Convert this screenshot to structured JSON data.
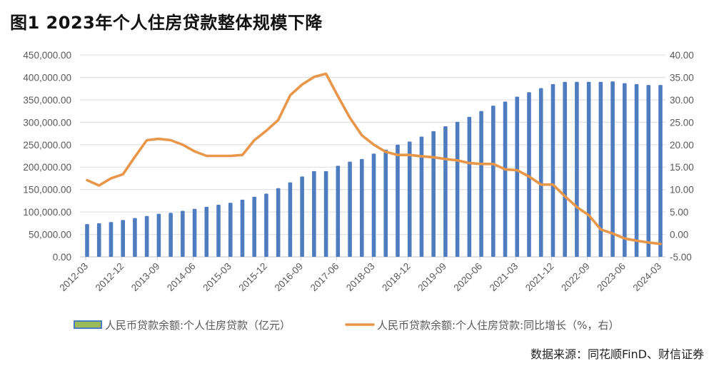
{
  "title": "图1  2023年个人住房贷款整体规模下降",
  "source": "数据来源：同花顺FinD、财信证券",
  "chart_data": {
    "type": "bar+line",
    "title": "图1  2023年个人住房贷款整体规模下降",
    "x": [
      "2012-03",
      "2012-06",
      "2012-09",
      "2012-12",
      "2013-03",
      "2013-06",
      "2013-09",
      "2013-12",
      "2014-03",
      "2014-06",
      "2014-09",
      "2014-12",
      "2015-03",
      "2015-06",
      "2015-09",
      "2015-12",
      "2016-03",
      "2016-06",
      "2016-09",
      "2016-12",
      "2017-03",
      "2017-06",
      "2017-09",
      "2017-12",
      "2018-03",
      "2018-06",
      "2018-09",
      "2018-12",
      "2019-03",
      "2019-06",
      "2019-09",
      "2019-12",
      "2020-03",
      "2020-06",
      "2020-09",
      "2020-12",
      "2021-03",
      "2021-06",
      "2021-09",
      "2021-12",
      "2022-03",
      "2022-06",
      "2022-09",
      "2022-12",
      "2023-03",
      "2023-06",
      "2023-09",
      "2023-12",
      "2024-03"
    ],
    "x_tick_labels": [
      "2012-03",
      "2012-12",
      "2013-09",
      "2014-06",
      "2015-03",
      "2015-12",
      "2016-09",
      "2017-06",
      "2018-03",
      "2018-12",
      "2019-09",
      "2020-06",
      "2021-03",
      "2021-12",
      "2022-09",
      "2023-06",
      "2024-03"
    ],
    "y_left": {
      "ylim": [
        0,
        450000
      ],
      "ticks": [
        "0.00",
        "50,000.00",
        "100,000.00",
        "150,000.00",
        "200,000.00",
        "250,000.00",
        "300,000.00",
        "350,000.00",
        "400,000.00",
        "450,000.00"
      ]
    },
    "y_right": {
      "ylim": [
        -5,
        40
      ],
      "ticks": [
        "-5.00",
        "0.00",
        "5.00",
        "10.00",
        "15.00",
        "20.00",
        "25.00",
        "30.00",
        "35.00",
        "40.00"
      ]
    },
    "grid": true,
    "legend_position": "bottom",
    "series": [
      {
        "name": "人民币贷款余额:个人住房贷款（亿元）",
        "type": "bar",
        "axis": "left",
        "color": "#4f7cbf",
        "legend_swatch": "#9bbb59",
        "values": [
          73000,
          75000,
          77500,
          82000,
          86500,
          91000,
          96000,
          98000,
          102500,
          107000,
          111500,
          116000,
          120500,
          127500,
          134000,
          141000,
          153000,
          166000,
          179000,
          191000,
          191000,
          203000,
          212000,
          218000,
          230000,
          239000,
          250000,
          257000,
          268000,
          280000,
          291000,
          301000,
          312000,
          325000,
          337000,
          346000,
          357000,
          367000,
          376000,
          385000,
          390000,
          390000,
          390000,
          390000,
          391000,
          387000,
          385000,
          383000,
          383000
        ]
      },
      {
        "name": "人民币贷款余额:个人住房贷款:同比增长（%，右）",
        "type": "line",
        "axis": "right",
        "color": "#e8964a",
        "values": [
          12.1,
          10.9,
          12.5,
          13.4,
          17.3,
          21.0,
          21.3,
          21.0,
          20.0,
          18.5,
          17.5,
          17.5,
          17.5,
          17.7,
          21.0,
          23.1,
          25.5,
          31.0,
          33.4,
          35.1,
          35.8,
          30.8,
          26.0,
          22.1,
          20.0,
          18.4,
          17.7,
          17.7,
          17.4,
          17.2,
          16.8,
          16.5,
          15.9,
          15.7,
          15.7,
          14.5,
          14.3,
          12.9,
          11.1,
          11.1,
          8.5,
          6.1,
          4.3,
          1.1,
          0.2,
          -0.9,
          -1.4,
          -1.8,
          -2.1
        ]
      }
    ]
  }
}
